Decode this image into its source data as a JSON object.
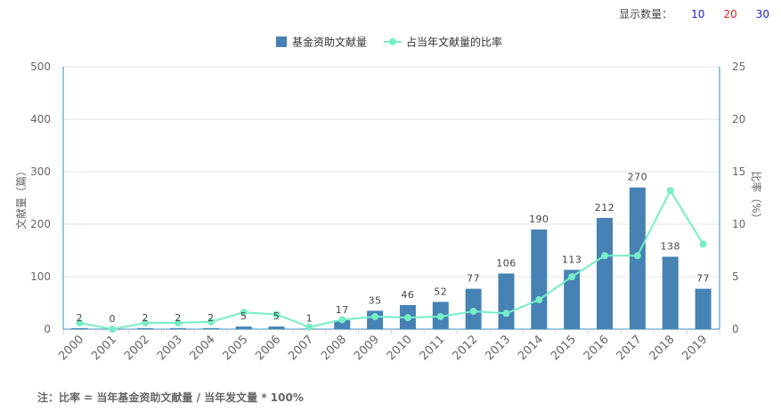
{
  "display_count": {
    "label": "显示数量：",
    "options": [
      {
        "label": "10",
        "color": "#2222cc"
      },
      {
        "label": "20",
        "color": "#e02020"
      },
      {
        "label": "30",
        "color": "#2222cc"
      }
    ]
  },
  "chart_data": {
    "type": "bar",
    "categories": [
      "2000",
      "2001",
      "2002",
      "2003",
      "2004",
      "2005",
      "2006",
      "2007",
      "2008",
      "2009",
      "2010",
      "2011",
      "2012",
      "2013",
      "2014",
      "2015",
      "2016",
      "2017",
      "2018",
      "2019"
    ],
    "series": [
      {
        "name": "基金资助文献量",
        "type": "bar",
        "yaxis": 0,
        "color": "#4682b4",
        "values": [
          2,
          0,
          2,
          2,
          2,
          5,
          5,
          1,
          17,
          35,
          46,
          52,
          77,
          106,
          190,
          113,
          212,
          270,
          138,
          77
        ]
      },
      {
        "name": "占当年文献量的比率",
        "type": "line",
        "yaxis": 1,
        "color": "#76eec6",
        "values": [
          0.6,
          0,
          0.6,
          0.6,
          0.7,
          1.6,
          1.4,
          0.2,
          0.9,
          1.2,
          1.1,
          1.2,
          1.7,
          1.5,
          2.8,
          5.0,
          7.0,
          7.0,
          13.2,
          8.1
        ]
      }
    ],
    "ylabel": "文献量（篇）",
    "ylabel_right": "比率（%）",
    "ylim": [
      0,
      500
    ],
    "ylim_right": [
      0,
      25
    ],
    "yticks": [
      0,
      100,
      200,
      300,
      400,
      500
    ],
    "yticks_right": [
      0,
      5,
      10,
      15,
      20,
      25
    ],
    "grid": true,
    "legend": "top-center",
    "bar_data_labels": true
  },
  "note": "注：比率 = 当年基金资助文献量 / 当年发文量 * 100%"
}
